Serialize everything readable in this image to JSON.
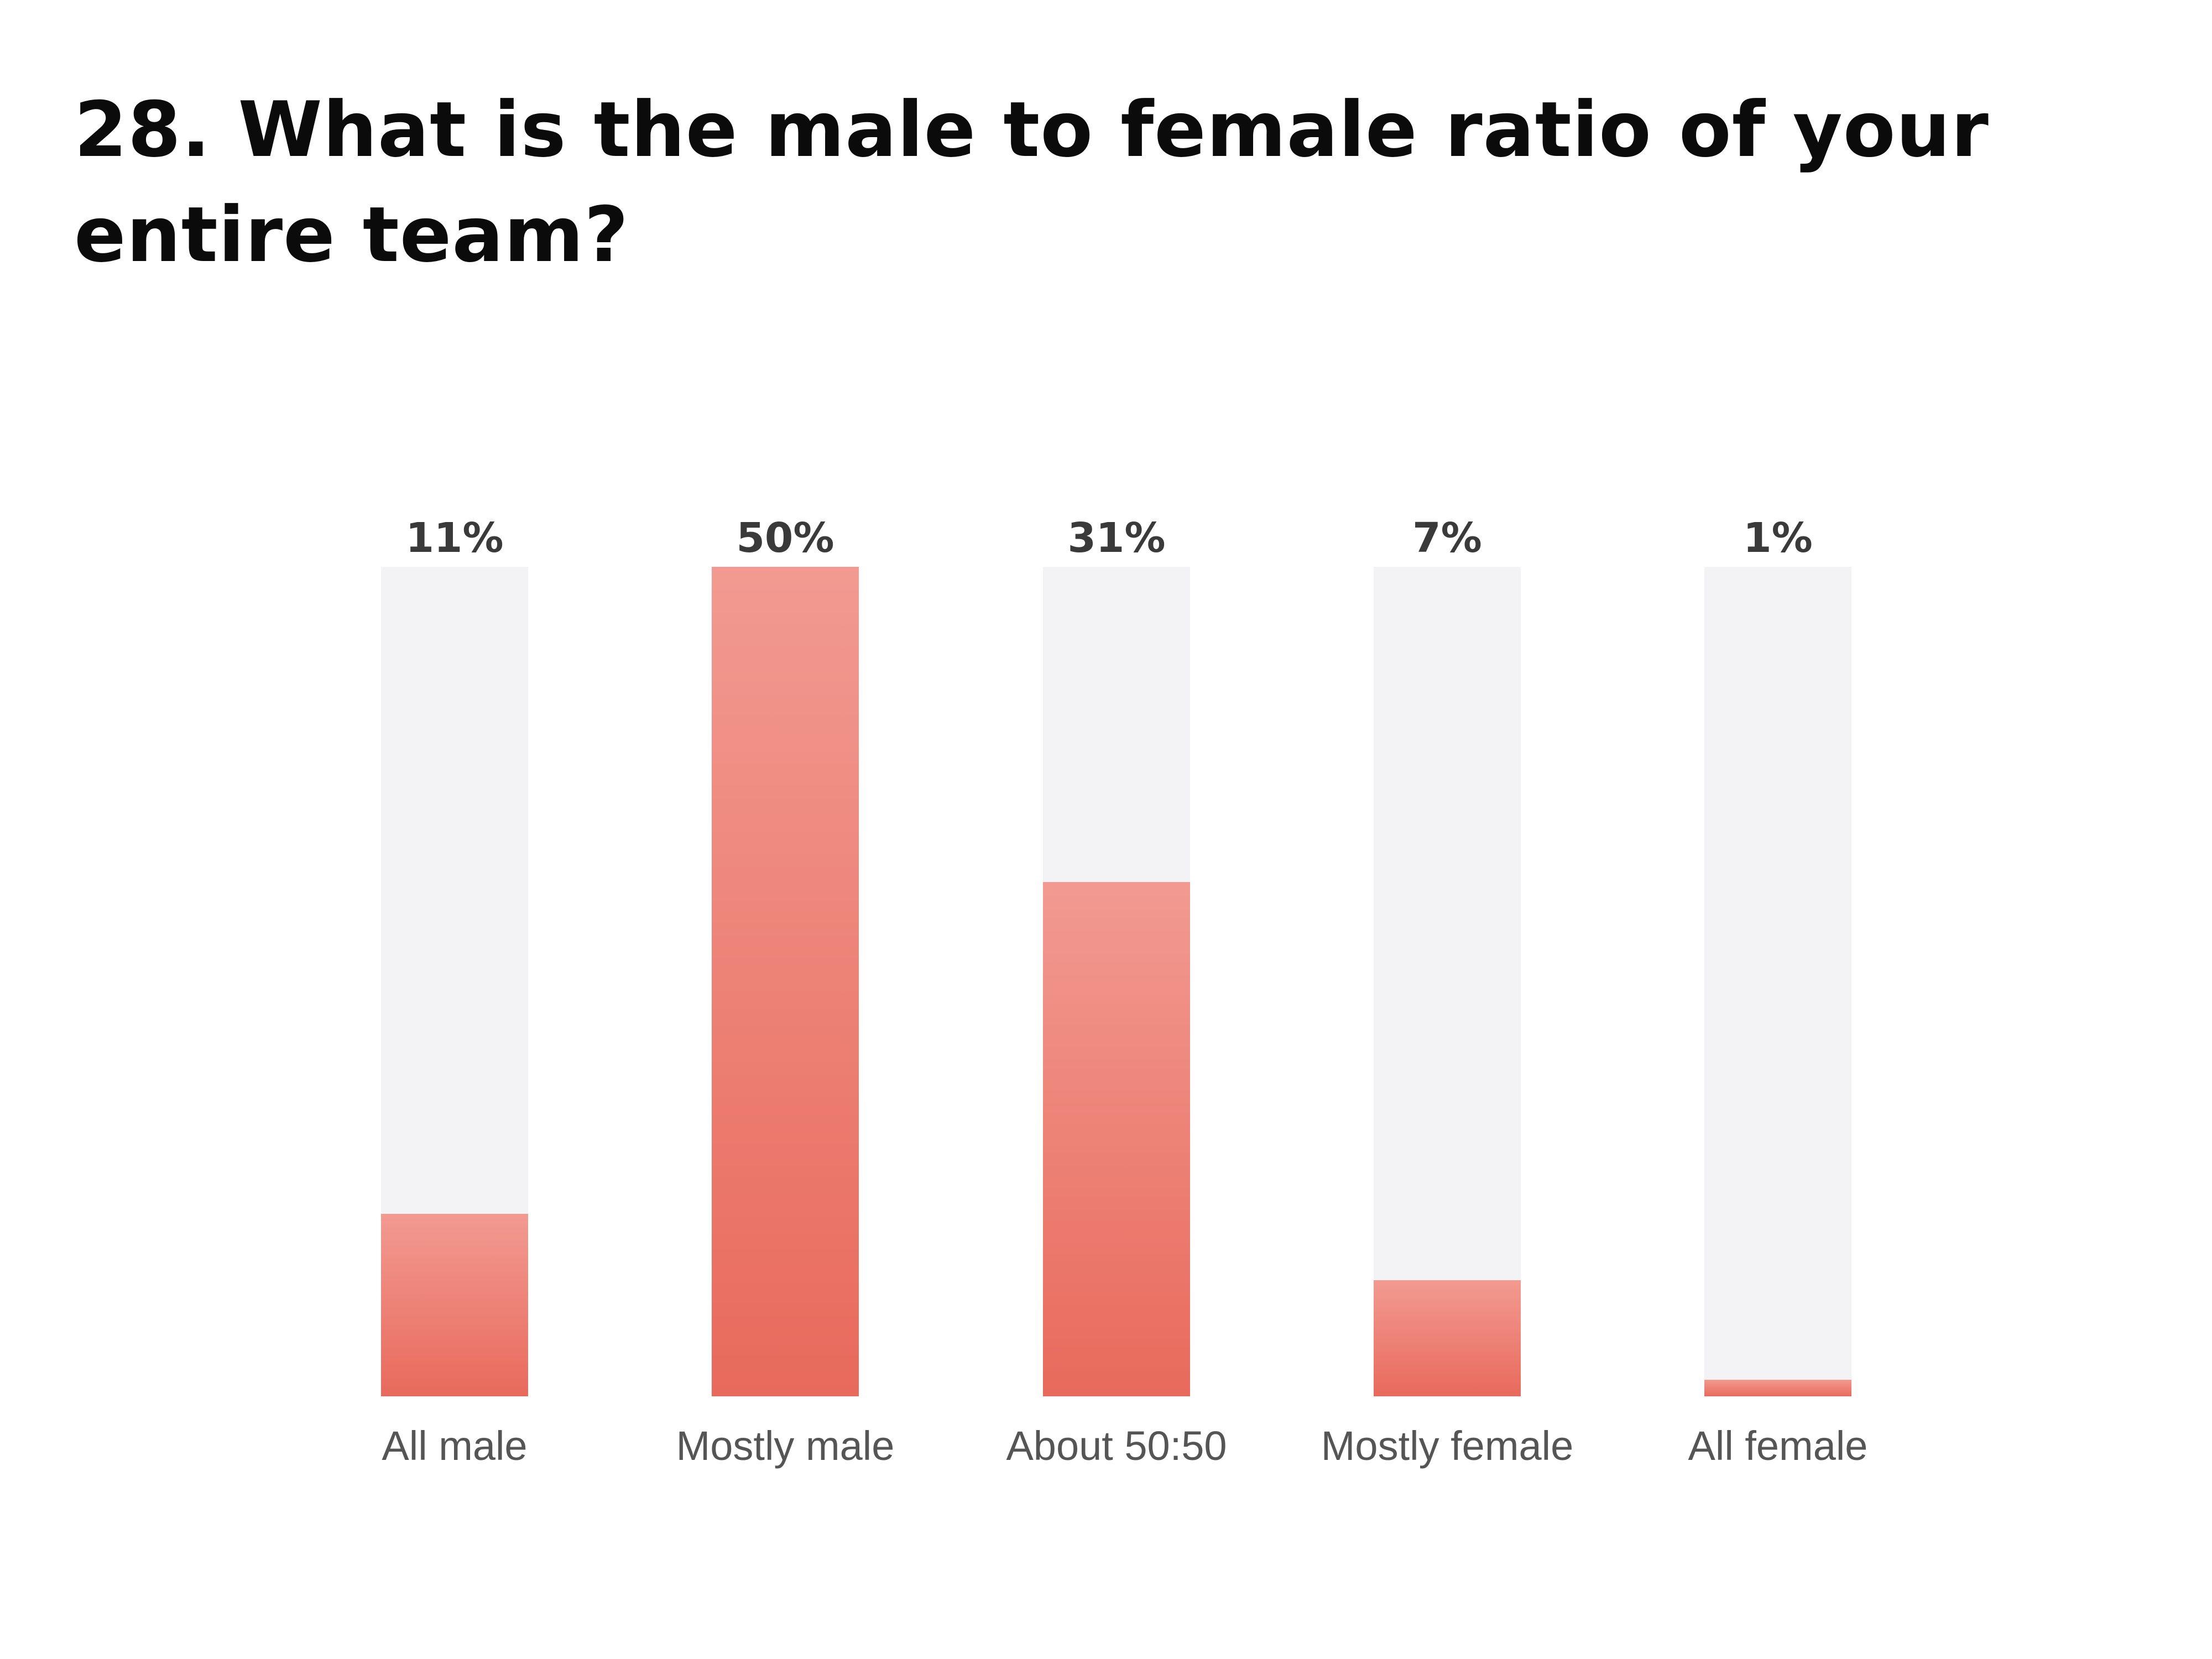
{
  "title": "28. What is the male to female ratio of your entire team?",
  "colors": {
    "bar_top": "#f29a91",
    "bar_bottom": "#e86a5c",
    "track": "#f3f3f5",
    "value_label": "#3a3a3a",
    "category_label": "#555555"
  },
  "chart_data": {
    "type": "bar",
    "title": "28. What is the male to female ratio of your entire team?",
    "categories": [
      "All male",
      "Mostly male",
      "About 50:50",
      "Mostly female",
      "All female"
    ],
    "values": [
      11,
      50,
      31,
      7,
      1
    ],
    "value_labels": [
      "11%",
      "50%",
      "31%",
      "7%",
      "1%"
    ],
    "ylim": [
      0,
      50
    ],
    "xlabel": "",
    "ylabel": "",
    "grid": false,
    "legend": "none"
  }
}
